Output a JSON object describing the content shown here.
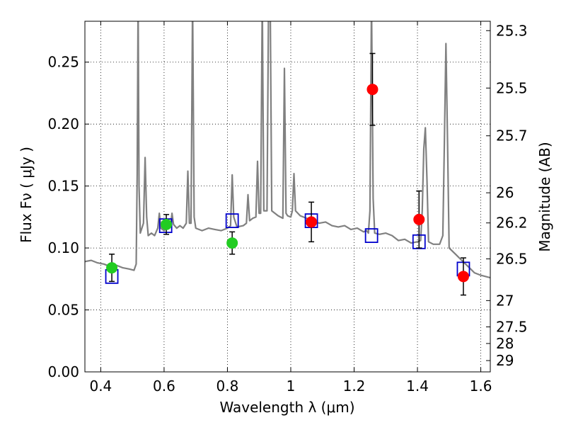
{
  "chart_data": {
    "type": "scatter",
    "xlabel": "Wavelength  λ (μm)",
    "ylabel": "Flux  Fν  ( μJy )",
    "y2label": "Magnitude (AB)",
    "xlim": [
      0.35,
      1.63
    ],
    "ylim": [
      0.0,
      0.283
    ],
    "grid": true,
    "x_ticks": [
      {
        "value": 0.4,
        "label": "0.4"
      },
      {
        "value": 0.6,
        "label": "0.6"
      },
      {
        "value": 0.8,
        "label": "0.8"
      },
      {
        "value": 1.0,
        "label": "1"
      },
      {
        "value": 1.2,
        "label": "1.2"
      },
      {
        "value": 1.4,
        "label": "1.4"
      },
      {
        "value": 1.6,
        "label": "1.6"
      }
    ],
    "y_ticks": [
      {
        "value": 0.0,
        "label": "0.00"
      },
      {
        "value": 0.05,
        "label": "0.05"
      },
      {
        "value": 0.1,
        "label": "0.10"
      },
      {
        "value": 0.15,
        "label": "0.15"
      },
      {
        "value": 0.2,
        "label": "0.20"
      },
      {
        "value": 0.25,
        "label": "0.25"
      }
    ],
    "y2_ticks": [
      {
        "value": 25.3,
        "label": "25.3"
      },
      {
        "value": 25.5,
        "label": "25.5"
      },
      {
        "value": 25.7,
        "label": "25.7"
      },
      {
        "value": 26.0,
        "label": "26"
      },
      {
        "value": 26.2,
        "label": "26.2"
      },
      {
        "value": 26.5,
        "label": "26.5"
      },
      {
        "value": 27.0,
        "label": "27"
      },
      {
        "value": 27.5,
        "label": "27.5"
      },
      {
        "value": 28.0,
        "label": "28"
      },
      {
        "value": 29.0,
        "label": "29"
      }
    ],
    "series": [
      {
        "kind": "line",
        "color": "#808080",
        "points": [
          [
            0.35,
            0.089
          ],
          [
            0.37,
            0.09
          ],
          [
            0.39,
            0.088
          ],
          [
            0.41,
            0.087
          ],
          [
            0.43,
            0.085
          ],
          [
            0.45,
            0.086
          ],
          [
            0.47,
            0.084
          ],
          [
            0.49,
            0.083
          ],
          [
            0.505,
            0.082
          ],
          [
            0.512,
            0.087
          ],
          [
            0.515,
            0.16
          ],
          [
            0.518,
            0.3
          ],
          [
            0.521,
            0.15
          ],
          [
            0.525,
            0.112
          ],
          [
            0.535,
            0.12
          ],
          [
            0.54,
            0.173
          ],
          [
            0.545,
            0.125
          ],
          [
            0.55,
            0.11
          ],
          [
            0.56,
            0.112
          ],
          [
            0.57,
            0.11
          ],
          [
            0.58,
            0.116
          ],
          [
            0.585,
            0.128
          ],
          [
            0.59,
            0.116
          ],
          [
            0.6,
            0.114
          ],
          [
            0.61,
            0.118
          ],
          [
            0.62,
            0.117
          ],
          [
            0.625,
            0.128
          ],
          [
            0.63,
            0.119
          ],
          [
            0.64,
            0.116
          ],
          [
            0.65,
            0.118
          ],
          [
            0.66,
            0.116
          ],
          [
            0.67,
            0.12
          ],
          [
            0.675,
            0.162
          ],
          [
            0.68,
            0.12
          ],
          [
            0.685,
            0.12
          ],
          [
            0.69,
            0.3
          ],
          [
            0.695,
            0.125
          ],
          [
            0.7,
            0.116
          ],
          [
            0.72,
            0.114
          ],
          [
            0.74,
            0.116
          ],
          [
            0.76,
            0.115
          ],
          [
            0.78,
            0.114
          ],
          [
            0.8,
            0.116
          ],
          [
            0.81,
            0.118
          ],
          [
            0.815,
            0.159
          ],
          [
            0.82,
            0.125
          ],
          [
            0.83,
            0.117
          ],
          [
            0.85,
            0.118
          ],
          [
            0.86,
            0.12
          ],
          [
            0.865,
            0.143
          ],
          [
            0.87,
            0.122
          ],
          [
            0.88,
            0.124
          ],
          [
            0.89,
            0.125
          ],
          [
            0.895,
            0.17
          ],
          [
            0.9,
            0.128
          ],
          [
            0.905,
            0.128
          ],
          [
            0.91,
            0.3
          ],
          [
            0.915,
            0.13
          ],
          [
            0.925,
            0.13
          ],
          [
            0.93,
            0.3
          ],
          [
            0.935,
            0.3
          ],
          [
            0.94,
            0.13
          ],
          [
            0.95,
            0.128
          ],
          [
            0.96,
            0.126
          ],
          [
            0.975,
            0.124
          ],
          [
            0.98,
            0.245
          ],
          [
            0.985,
            0.128
          ],
          [
            0.99,
            0.126
          ],
          [
            1.0,
            0.125
          ],
          [
            1.005,
            0.13
          ],
          [
            1.01,
            0.16
          ],
          [
            1.015,
            0.13
          ],
          [
            1.03,
            0.126
          ],
          [
            1.05,
            0.124
          ],
          [
            1.07,
            0.122
          ],
          [
            1.09,
            0.12
          ],
          [
            1.11,
            0.121
          ],
          [
            1.13,
            0.118
          ],
          [
            1.15,
            0.117
          ],
          [
            1.17,
            0.118
          ],
          [
            1.19,
            0.115
          ],
          [
            1.21,
            0.116
          ],
          [
            1.23,
            0.113
          ],
          [
            1.24,
            0.114
          ],
          [
            1.245,
            0.112
          ],
          [
            1.25,
            0.13
          ],
          [
            1.255,
            0.3
          ],
          [
            1.26,
            0.14
          ],
          [
            1.265,
            0.112
          ],
          [
            1.28,
            0.111
          ],
          [
            1.3,
            0.112
          ],
          [
            1.32,
            0.11
          ],
          [
            1.34,
            0.106
          ],
          [
            1.36,
            0.107
          ],
          [
            1.38,
            0.104
          ],
          [
            1.4,
            0.105
          ],
          [
            1.41,
            0.106
          ],
          [
            1.415,
            0.13
          ],
          [
            1.42,
            0.18
          ],
          [
            1.425,
            0.197
          ],
          [
            1.43,
            0.155
          ],
          [
            1.435,
            0.105
          ],
          [
            1.45,
            0.103
          ],
          [
            1.47,
            0.103
          ],
          [
            1.48,
            0.11
          ],
          [
            1.485,
            0.185
          ],
          [
            1.49,
            0.265
          ],
          [
            1.495,
            0.185
          ],
          [
            1.5,
            0.1
          ],
          [
            1.52,
            0.095
          ],
          [
            1.54,
            0.09
          ],
          [
            1.56,
            0.085
          ],
          [
            1.58,
            0.08
          ],
          [
            1.6,
            0.078
          ],
          [
            1.63,
            0.076
          ]
        ]
      },
      {
        "kind": "open-square",
        "color": "#0000cc",
        "points": [
          [
            0.435,
            0.077
          ],
          [
            0.605,
            0.118
          ],
          [
            0.815,
            0.122
          ],
          [
            1.065,
            0.122
          ],
          [
            1.255,
            0.11
          ],
          [
            1.405,
            0.105
          ],
          [
            1.545,
            0.083
          ]
        ]
      },
      {
        "kind": "filled-circle",
        "color": "#22cc22",
        "points": [
          {
            "x": 0.435,
            "y": 0.084,
            "err": 0.011
          },
          {
            "x": 0.607,
            "y": 0.119,
            "err": 0.008
          },
          {
            "x": 0.815,
            "y": 0.104,
            "err": 0.009
          }
        ]
      },
      {
        "kind": "filled-circle",
        "color": "#ff0000",
        "points": [
          {
            "x": 1.065,
            "y": 0.121,
            "err": 0.016
          },
          {
            "x": 1.258,
            "y": 0.228,
            "err": 0.029
          },
          {
            "x": 1.405,
            "y": 0.123,
            "err": 0.023
          },
          {
            "x": 1.545,
            "y": 0.077,
            "err": 0.015
          }
        ]
      }
    ]
  }
}
